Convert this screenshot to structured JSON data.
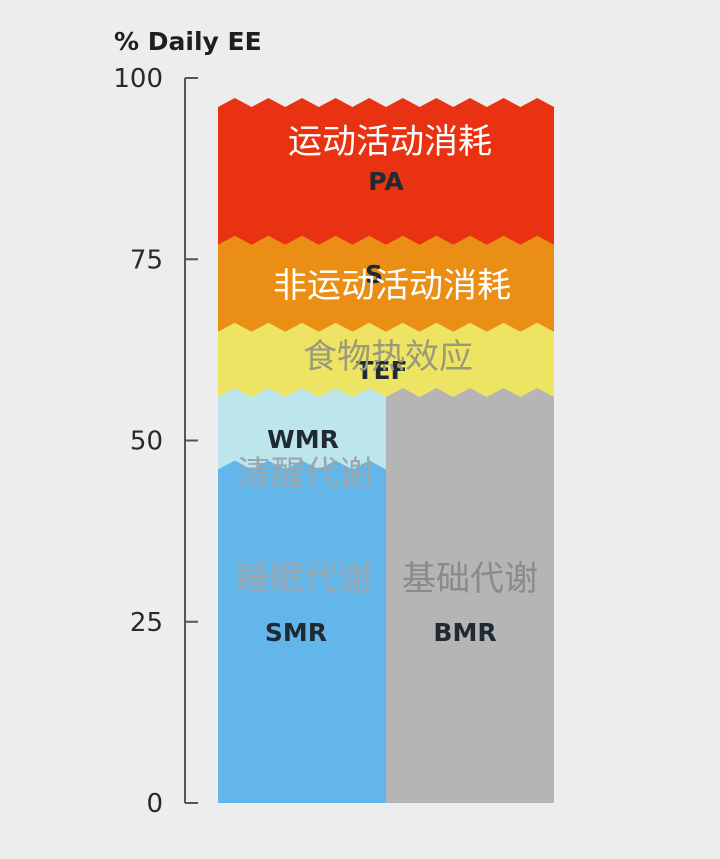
{
  "chart_data": {
    "type": "stacked-area",
    "ylabel": "% Daily EE",
    "ylim": [
      0,
      100
    ],
    "yticks": [
      "0",
      "25",
      "50",
      "75",
      "100"
    ],
    "columns": [
      {
        "name": "left",
        "layers": [
          {
            "key": "SMR",
            "label_en": "SMR",
            "label_zh": "睡眠代谢",
            "from": 0,
            "to": 46,
            "color": "#62b6ea",
            "zh_color": "#9aa6ad"
          },
          {
            "key": "WMR",
            "label_en": "WMR",
            "label_zh": "清醒代谢",
            "from": 46,
            "to": 56,
            "color": "#bde6ec",
            "zh_color": "#9aa6ad"
          }
        ]
      },
      {
        "name": "right",
        "layers": [
          {
            "key": "BMR",
            "label_en": "BMR",
            "label_zh": "基础代谢",
            "from": 0,
            "to": 56,
            "color": "#b5b5b5",
            "zh_color": "#8a8a8a"
          }
        ]
      }
    ],
    "full_layers": [
      {
        "key": "TEF",
        "label_en": "TEF",
        "label_zh": "食物热效应",
        "from": 56,
        "to": 65,
        "color": "#eee464",
        "zh_color": "#9a9a7a"
      },
      {
        "key": "NEAT",
        "label_en": "S",
        "label_zh": "非运动活动消耗",
        "from": 65,
        "to": 77,
        "color": "#eb8e16",
        "zh_color": "#ffffff"
      },
      {
        "key": "PA",
        "label_en": "PA",
        "label_zh": "运动活动消耗",
        "from": 77,
        "to": 96,
        "color": "#e83212",
        "zh_color": "#ffffff"
      }
    ]
  }
}
